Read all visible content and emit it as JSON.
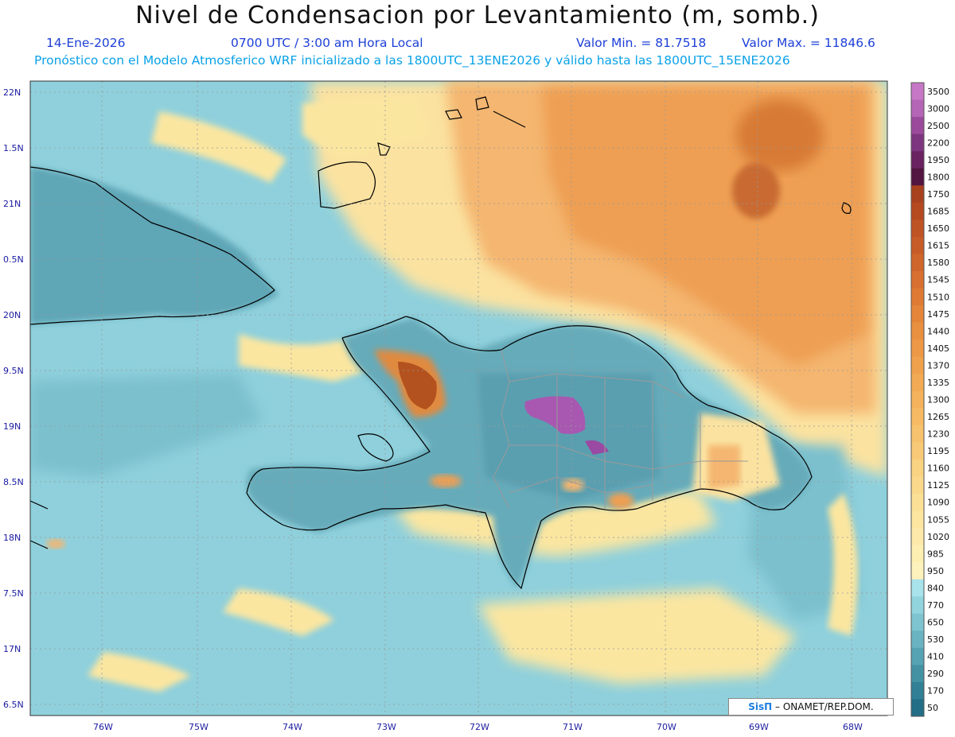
{
  "title": "Nivel de Condensacion por Levantamiento (m, somb.)",
  "date": "14-Ene-2026",
  "time": "0700 UTC / 3:00 am Hora Local",
  "valor_min": "Valor Min. = 81.7518",
  "valor_max": "Valor Max. = 11846.6",
  "forecast": "Pronóstico con el Modelo Atmosferico WRF inicializado a las 1800UTC_13ENE2026 y válido hasta las  1800UTC_15ENE2026",
  "lat_labels": [
    "22N",
    "1.5N",
    "21N",
    "0.5N",
    "20N",
    "9.5N",
    "19N",
    "8.5N",
    "18N",
    "7.5N",
    "17N",
    "6.5N"
  ],
  "lon_labels": [
    "76W",
    "75W",
    "74W",
    "73W",
    "72W",
    "71W",
    "70W",
    "69W",
    "68W"
  ],
  "colorbar": {
    "levels": [
      "3500",
      "3000",
      "2500",
      "2200",
      "1950",
      "1800",
      "1750",
      "1685",
      "1650",
      "1615",
      "1580",
      "1545",
      "1510",
      "1475",
      "1440",
      "1405",
      "1370",
      "1335",
      "1300",
      "1265",
      "1230",
      "1195",
      "1160",
      "1125",
      "1090",
      "1055",
      "1020",
      "985",
      "950",
      "840",
      "770",
      "650",
      "530",
      "410",
      "290",
      "170",
      "50"
    ],
    "colors": [
      "#c678c6",
      "#b565b5",
      "#9b4a9b",
      "#7e3580",
      "#6a2260",
      "#521440",
      "#a8421e",
      "#b54a20",
      "#be5324",
      "#c75c28",
      "#cf662c",
      "#d77030",
      "#de7a34",
      "#e4853a",
      "#e98f40",
      "#ec9846",
      "#efa14c",
      "#f2aa54",
      "#f4b25c",
      "#f6ba64",
      "#f7c26e",
      "#f8ca78",
      "#f9d282",
      "#fad98c",
      "#fbe096",
      "#fce6a0",
      "#fdeaaa",
      "#fdeeb2",
      "#fef2bc",
      "#a8e2ea",
      "#92d4de",
      "#7ec4d0",
      "#6ab4c2",
      "#56a3b3",
      "#4392a4",
      "#318095",
      "#216e86"
    ]
  },
  "map_colors": {
    "ocean": "#8fd0dc",
    "ocean_deep": "#6fb9c9",
    "land": "#5fa9b9",
    "dry": "#fbe6a0",
    "orange": "#f0a85a",
    "brown": "#b85a24",
    "purple": "#a050a8"
  },
  "credit_brand": "SisΠ",
  "credit_text": " –  ONAMET/REP.DOM."
}
